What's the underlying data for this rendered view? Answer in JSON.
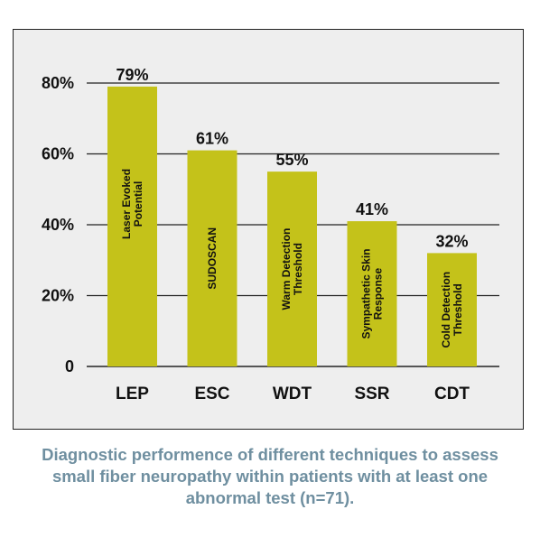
{
  "chart_data": {
    "type": "bar",
    "categories": [
      "LEP",
      "ESC",
      "WDT",
      "SSR",
      "CDT"
    ],
    "values": [
      79,
      61,
      55,
      41,
      32
    ],
    "value_labels": [
      "79%",
      "61%",
      "55%",
      "41%",
      "32%"
    ],
    "bar_texts": [
      [
        "Laser Evoked",
        "Potential"
      ],
      [
        "SUDOSCAN"
      ],
      [
        "Warm Detection",
        "Threshold"
      ],
      [
        "Sympathetic Skin",
        "Response"
      ],
      [
        "Cold Detection",
        "Threshold"
      ]
    ],
    "y_ticks": [
      {
        "value": 0,
        "label": "0"
      },
      {
        "value": 20,
        "label": "20%"
      },
      {
        "value": 40,
        "label": "40%"
      },
      {
        "value": 60,
        "label": "60%"
      },
      {
        "value": 80,
        "label": "80%"
      }
    ],
    "ylim": [
      0,
      80
    ],
    "grid": true,
    "bar_color": "#c4c21a",
    "background_color": "#eeeeee",
    "title": "",
    "xlabel": "",
    "ylabel": ""
  },
  "caption": {
    "lines": [
      "Diagnostic performence of different techniques to assess",
      "small fiber neuropathy within patients with at least one",
      "abnormal test (n=71)."
    ],
    "color": "#6f8fa0"
  }
}
